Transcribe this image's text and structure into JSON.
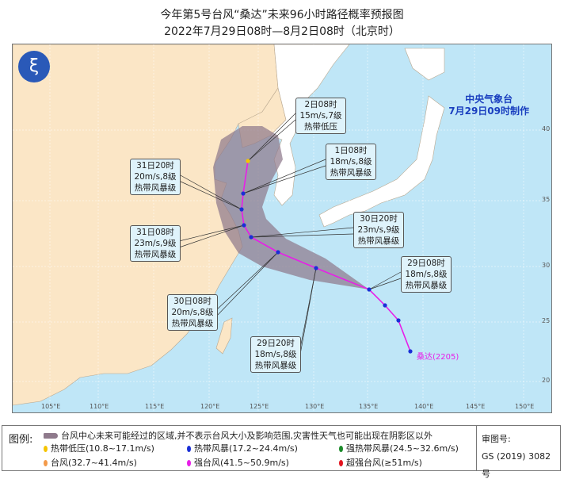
{
  "title": "今年第5号台风“桑达”未来96小时路径概率预报图",
  "subtitle": "2022年7月29日08时—8月2日08时（北京时）",
  "org": {
    "name": "中央气象台",
    "time": "7月29日09时制作"
  },
  "storm_label": "桑达(2205)",
  "lon_ticks": [
    "105°E",
    "110°E",
    "115°E",
    "120°E",
    "125°E",
    "130°E",
    "135°E",
    "140°E",
    "145°E",
    "150°E"
  ],
  "lat_ticks": [
    "40",
    "35",
    "30",
    "25",
    "20"
  ],
  "forecasts": [
    {
      "time": "2日08时",
      "wind": "15m/s,7级",
      "level": "热带低压"
    },
    {
      "time": "1日08时",
      "wind": "18m/s,8级",
      "level": "热带风暴级"
    },
    {
      "time": "31日20时",
      "wind": "20m/s,8级",
      "level": "热带风暴级"
    },
    {
      "time": "31日08时",
      "wind": "23m/s,9级",
      "level": "热带风暴级"
    },
    {
      "time": "30日20时",
      "wind": "23m/s,9级",
      "level": "热带风暴级"
    },
    {
      "time": "29日08时",
      "wind": "18m/s,8级",
      "level": "热带风暴级"
    },
    {
      "time": "30日08时",
      "wind": "20m/s,8级",
      "level": "热带风暴级"
    },
    {
      "time": "29日20时",
      "wind": "18m/s,8级",
      "level": "热带风暴级"
    }
  ],
  "legend": {
    "head": "图例:",
    "cone": "台风中心未来可能经过的区域,并不表示台风大小及影响范围,灾害性天气也可能出现在阴影区以外",
    "items": [
      {
        "label": "热带低压(10.8~17.1m/s)",
        "color": "#f5c400"
      },
      {
        "label": "热带风暴(17.2~24.4m/s)",
        "color": "#1a2fd6"
      },
      {
        "label": "强热带风暴(24.5~32.6m/s)",
        "color": "#1b8a2a"
      },
      {
        "label": "台风(32.7~41.4m/s)",
        "color": "#f39a4a"
      },
      {
        "label": "强台风(41.5~50.9m/s)",
        "color": "#e81ee8"
      },
      {
        "label": "超强台风(≥51m/s)",
        "color": "#e3141e"
      }
    ]
  },
  "review": {
    "label": "审图号:",
    "number": "GS (2019) 3082号"
  }
}
